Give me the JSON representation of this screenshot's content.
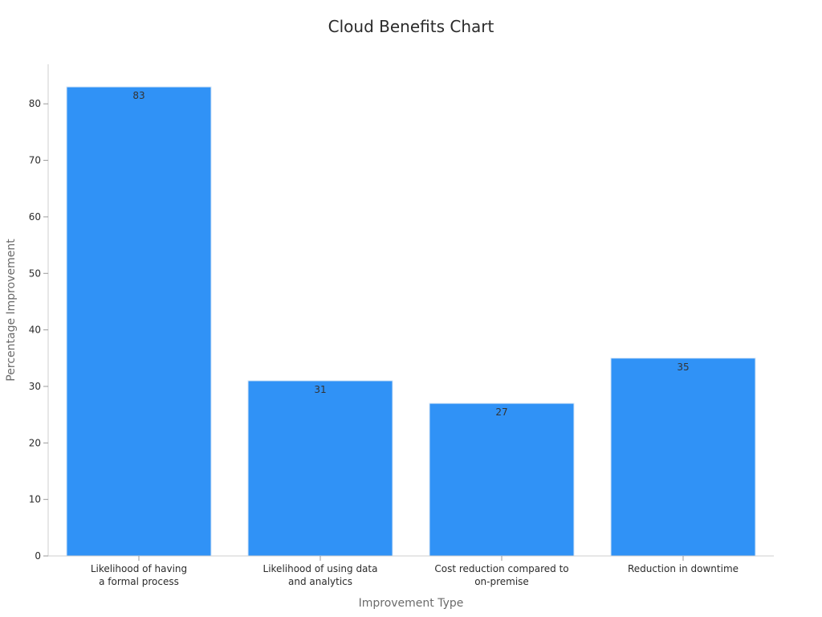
{
  "chart_data": {
    "type": "bar",
    "title": "Cloud Benefits Chart",
    "xlabel": "Improvement Type",
    "ylabel": "Percentage Improvement",
    "categories": [
      [
        "Likelihood of having",
        "a formal process"
      ],
      [
        "Likelihood of using data",
        "and analytics"
      ],
      [
        "Cost reduction compared to",
        "on-premise"
      ],
      [
        "Reduction in downtime"
      ]
    ],
    "values": [
      83,
      31,
      27,
      35
    ],
    "data_labels": [
      "83",
      "31",
      "27",
      "35"
    ],
    "ylim": [
      0,
      87
    ],
    "yticks": [
      0,
      10,
      20,
      30,
      40,
      50,
      60,
      70,
      80
    ],
    "bar_color": "#3092f6",
    "grid": false,
    "legend": "none"
  }
}
